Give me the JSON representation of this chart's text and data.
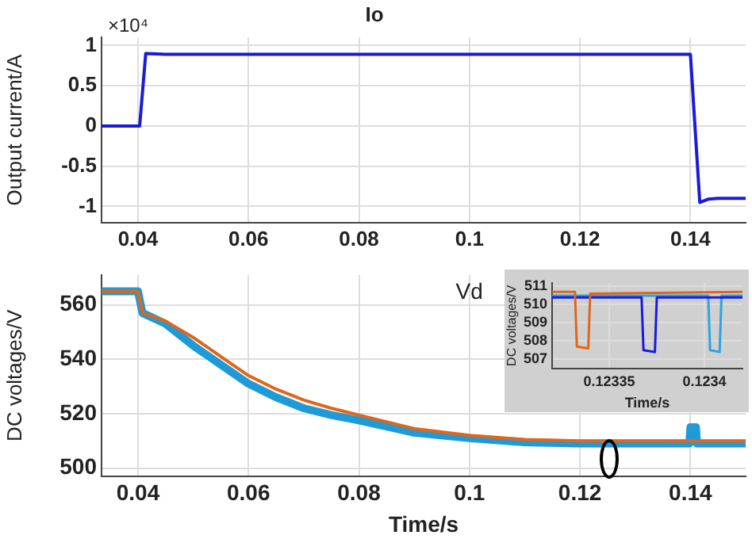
{
  "chart_data": [
    {
      "type": "line",
      "title": "Io",
      "ylabel": "Output current/A",
      "annotations": [
        "×10⁴"
      ],
      "xlim": [
        0.0334,
        0.15
      ],
      "ylim": [
        -1.2,
        1.1
      ],
      "xticks": [
        0.04,
        0.06,
        0.08,
        0.1,
        0.12,
        0.14
      ],
      "yticks": [
        -1,
        -0.5,
        0,
        0.5,
        1
      ],
      "grid": true,
      "legend": false,
      "marker": "none",
      "series": [
        {
          "color": "#1a1adb",
          "x": [
            0.0334,
            0.0403,
            0.0414,
            0.045,
            0.14,
            0.1417,
            0.1432,
            0.145,
            0.15
          ],
          "values": [
            0,
            0,
            0.9,
            0.89,
            0.89,
            -0.95,
            -0.91,
            -0.9,
            -0.9
          ]
        }
      ]
    },
    {
      "type": "line",
      "title": "Vd",
      "xlabel": "Time/s",
      "ylabel": "DC voltages/V",
      "xlim": [
        0.0334,
        0.15
      ],
      "ylim": [
        497,
        571
      ],
      "xticks": [
        0.04,
        0.06,
        0.08,
        0.1,
        0.12,
        0.14
      ],
      "yticks": [
        500,
        520,
        540,
        560
      ],
      "grid": true,
      "legend": false,
      "marker": "none",
      "series": [
        {
          "color": "#e0661a",
          "x": [
            0.0334,
            0.04,
            0.0408,
            0.045,
            0.05,
            0.055,
            0.06,
            0.065,
            0.07,
            0.075,
            0.08,
            0.09,
            0.1,
            0.11,
            0.12,
            0.14,
            0.15
          ],
          "values": [
            565,
            565,
            557,
            554,
            548,
            541,
            534,
            529,
            525,
            522,
            519.5,
            514.5,
            512,
            510.5,
            510,
            510,
            510
          ]
        },
        {
          "color": "#1f9ad6",
          "x": [
            0.0334,
            0.04,
            0.0408,
            0.045,
            0.05,
            0.055,
            0.06,
            0.065,
            0.07,
            0.075,
            0.08,
            0.09,
            0.1,
            0.11,
            0.12,
            0.1398,
            0.14,
            0.141,
            0.1412,
            0.15
          ],
          "values": [
            565,
            565,
            557,
            553,
            545,
            538,
            531,
            526,
            522,
            519.5,
            517.5,
            513,
            511,
            509.5,
            509,
            509,
            515,
            515,
            509,
            509
          ]
        }
      ]
    },
    {
      "type": "line",
      "xlabel": "Time/s",
      "ylabel": "DC voltages/V",
      "xlim": [
        0.12332,
        0.12342
      ],
      "ylim": [
        506.5,
        511.2
      ],
      "xticks": [
        0.12335,
        0.1234
      ],
      "yticks": [
        507,
        508,
        509,
        510,
        511
      ],
      "grid": true,
      "legend": false,
      "marker": "none",
      "series": [
        {
          "color": "#e0661a",
          "x": [
            0.12332,
            0.123332,
            0.123333,
            0.123339,
            0.12334,
            0.12342
          ],
          "values": [
            510.7,
            510.7,
            507.7,
            507.6,
            510.6,
            510.7
          ]
        },
        {
          "color": "#1a1adb",
          "x": [
            0.12332,
            0.123367,
            0.123368,
            0.123374,
            0.123375,
            0.12342
          ],
          "values": [
            510.4,
            510.4,
            507.5,
            507.4,
            510.4,
            510.4
          ]
        },
        {
          "color": "#2aa6e0",
          "x": [
            0.12332,
            0.123402,
            0.123403,
            0.123408,
            0.123409,
            0.12342
          ],
          "values": [
            510.5,
            510.5,
            507.5,
            507.4,
            510.5,
            510.5
          ]
        }
      ]
    }
  ]
}
